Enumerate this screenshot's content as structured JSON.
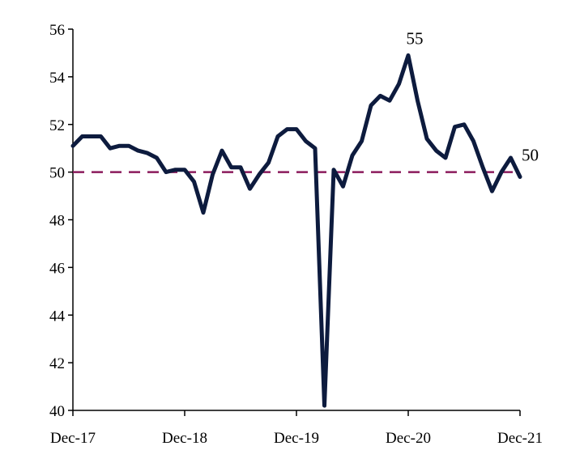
{
  "chart_data": {
    "type": "line",
    "title": "",
    "xlabel": "",
    "ylabel": "",
    "ylim": [
      40,
      56
    ],
    "yticks": [
      40,
      42,
      44,
      46,
      48,
      50,
      52,
      54,
      56
    ],
    "xtick_labels": [
      "Dec-17",
      "Dec-18",
      "Dec-19",
      "Dec-20",
      "Dec-21"
    ],
    "grid": false,
    "legend": "none",
    "reference_line": {
      "value": 50,
      "style": "dashed",
      "color": "#8B1A5C"
    },
    "series": [
      {
        "color": "#0D1B3E",
        "x": [
          "Dec-17",
          "Jan-18",
          "Feb-18",
          "Mar-18",
          "Apr-18",
          "May-18",
          "Jun-18",
          "Jul-18",
          "Aug-18",
          "Sep-18",
          "Oct-18",
          "Nov-18",
          "Dec-18",
          "Jan-19",
          "Feb-19",
          "Mar-19",
          "Apr-19",
          "May-19",
          "Jun-19",
          "Jul-19",
          "Aug-19",
          "Sep-19",
          "Oct-19",
          "Nov-19",
          "Dec-19",
          "Jan-20",
          "Feb-20",
          "Mar-20",
          "Apr-20",
          "May-20",
          "Jun-20",
          "Jul-20",
          "Aug-20",
          "Sep-20",
          "Oct-20",
          "Nov-20",
          "Dec-20",
          "Jan-21",
          "Feb-21",
          "Mar-21",
          "Apr-21",
          "May-21",
          "Jun-21",
          "Jul-21",
          "Aug-21",
          "Sep-21",
          "Oct-21",
          "Nov-21",
          "Dec-21"
        ],
        "values": [
          51.1,
          51.5,
          51.5,
          51.5,
          51.0,
          51.1,
          51.1,
          50.9,
          50.8,
          50.6,
          50.0,
          50.1,
          50.1,
          49.6,
          48.3,
          49.9,
          50.9,
          50.2,
          50.2,
          49.3,
          49.9,
          50.4,
          51.5,
          51.8,
          51.8,
          51.3,
          51.0,
          40.2,
          50.1,
          49.4,
          50.7,
          51.3,
          52.8,
          53.2,
          53.0,
          53.7,
          54.9,
          53.0,
          51.4,
          50.9,
          50.6,
          51.9,
          52.0,
          51.3,
          50.2,
          49.2,
          50.0,
          50.6,
          49.8
        ]
      }
    ],
    "annotations": [
      {
        "text": "55",
        "x": "Dec-20",
        "y": 54.9
      },
      {
        "text": "50",
        "x": "Dec-21",
        "y": 49.8
      }
    ]
  }
}
